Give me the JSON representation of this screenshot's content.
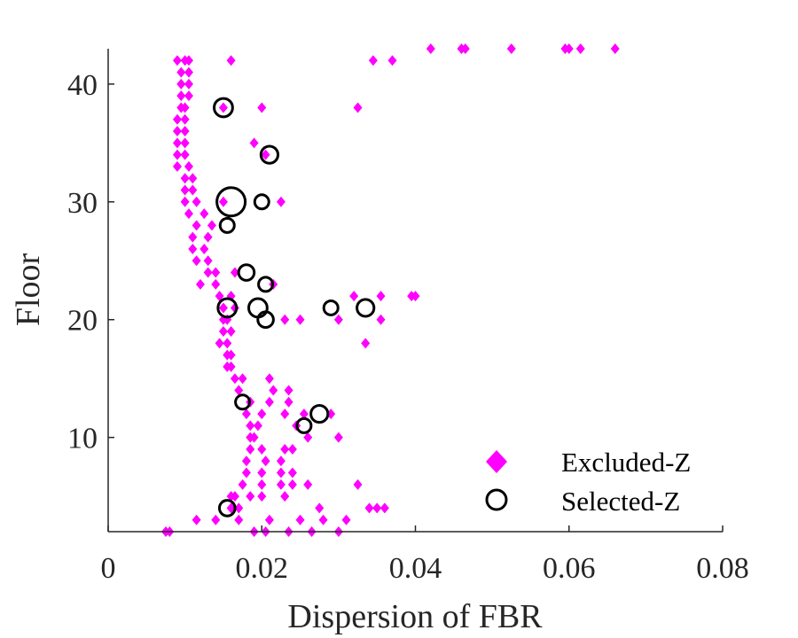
{
  "chart_data": {
    "type": "scatter",
    "title": "",
    "xlabel": "Dispersion of FBR",
    "ylabel": "Floor",
    "xlim": [
      0,
      0.08
    ],
    "ylim": [
      2,
      43
    ],
    "xticks": [
      0,
      0.02,
      0.04,
      0.06,
      0.08
    ],
    "xtick_labels": [
      "0",
      "0.02",
      "0.04",
      "0.06",
      "0.08"
    ],
    "yticks": [
      10,
      20,
      30,
      40
    ],
    "ytick_labels": [
      "10",
      "20",
      "30",
      "40"
    ],
    "grid": false,
    "legend_position": "bottom-right",
    "colors": {
      "excluded": "#ff00ff",
      "selected": "#000000",
      "axis": "#262626"
    },
    "series": [
      {
        "name": "Excluded-Z",
        "marker": "diamond",
        "points": [
          [
            0.0075,
            2
          ],
          [
            0.008,
            2
          ],
          [
            0.019,
            2
          ],
          [
            0.0205,
            2
          ],
          [
            0.0235,
            2
          ],
          [
            0.0265,
            2
          ],
          [
            0.03,
            2
          ],
          [
            0.0115,
            3
          ],
          [
            0.014,
            3
          ],
          [
            0.017,
            3
          ],
          [
            0.021,
            3
          ],
          [
            0.025,
            3
          ],
          [
            0.028,
            3
          ],
          [
            0.031,
            3
          ],
          [
            0.016,
            4
          ],
          [
            0.017,
            4
          ],
          [
            0.0275,
            4
          ],
          [
            0.034,
            4
          ],
          [
            0.035,
            4
          ],
          [
            0.036,
            4
          ],
          [
            0.016,
            5
          ],
          [
            0.0165,
            5
          ],
          [
            0.0185,
            5
          ],
          [
            0.02,
            5
          ],
          [
            0.023,
            5
          ],
          [
            0.0175,
            6
          ],
          [
            0.02,
            6
          ],
          [
            0.0225,
            6
          ],
          [
            0.024,
            6
          ],
          [
            0.026,
            6
          ],
          [
            0.0325,
            6
          ],
          [
            0.018,
            7
          ],
          [
            0.02,
            7
          ],
          [
            0.0225,
            7
          ],
          [
            0.024,
            7
          ],
          [
            0.018,
            8
          ],
          [
            0.0205,
            8
          ],
          [
            0.0225,
            8
          ],
          [
            0.0185,
            9
          ],
          [
            0.02,
            9
          ],
          [
            0.023,
            9
          ],
          [
            0.024,
            9
          ],
          [
            0.0185,
            10
          ],
          [
            0.019,
            10
          ],
          [
            0.026,
            10
          ],
          [
            0.03,
            10
          ],
          [
            0.0185,
            11
          ],
          [
            0.0195,
            11
          ],
          [
            0.0245,
            11
          ],
          [
            0.018,
            12
          ],
          [
            0.02,
            12
          ],
          [
            0.023,
            12
          ],
          [
            0.0255,
            12
          ],
          [
            0.029,
            12
          ],
          [
            0.0185,
            13
          ],
          [
            0.021,
            13
          ],
          [
            0.0235,
            13
          ],
          [
            0.017,
            14
          ],
          [
            0.0215,
            14
          ],
          [
            0.0235,
            14
          ],
          [
            0.0165,
            15
          ],
          [
            0.0175,
            15
          ],
          [
            0.021,
            15
          ],
          [
            0.0155,
            16
          ],
          [
            0.016,
            16
          ],
          [
            0.0155,
            17
          ],
          [
            0.016,
            17
          ],
          [
            0.0145,
            18
          ],
          [
            0.0155,
            18
          ],
          [
            0.0335,
            18
          ],
          [
            0.015,
            19
          ],
          [
            0.016,
            19
          ],
          [
            0.015,
            20
          ],
          [
            0.0155,
            20
          ],
          [
            0.023,
            20
          ],
          [
            0.025,
            20
          ],
          [
            0.03,
            20
          ],
          [
            0.0355,
            20
          ],
          [
            0.015,
            21
          ],
          [
            0.0165,
            21
          ],
          [
            0.0145,
            22
          ],
          [
            0.016,
            22
          ],
          [
            0.032,
            22
          ],
          [
            0.0355,
            22
          ],
          [
            0.0395,
            22
          ],
          [
            0.04,
            22
          ],
          [
            0.014,
            23
          ],
          [
            0.012,
            23
          ],
          [
            0.0215,
            23
          ],
          [
            0.013,
            24
          ],
          [
            0.014,
            24
          ],
          [
            0.0165,
            24
          ],
          [
            0.0115,
            25
          ],
          [
            0.013,
            25
          ],
          [
            0.011,
            26
          ],
          [
            0.0125,
            26
          ],
          [
            0.011,
            27
          ],
          [
            0.013,
            27
          ],
          [
            0.0115,
            28
          ],
          [
            0.0135,
            28
          ],
          [
            0.0105,
            29
          ],
          [
            0.0125,
            29
          ],
          [
            0.01,
            30
          ],
          [
            0.0115,
            30
          ],
          [
            0.015,
            30
          ],
          [
            0.0225,
            30
          ],
          [
            0.01,
            31
          ],
          [
            0.011,
            31
          ],
          [
            0.01,
            32
          ],
          [
            0.011,
            32
          ],
          [
            0.009,
            33
          ],
          [
            0.0105,
            33
          ],
          [
            0.009,
            34
          ],
          [
            0.01,
            34
          ],
          [
            0.0205,
            34
          ],
          [
            0.009,
            35
          ],
          [
            0.01,
            35
          ],
          [
            0.019,
            35
          ],
          [
            0.009,
            36
          ],
          [
            0.01,
            36
          ],
          [
            0.009,
            37
          ],
          [
            0.01,
            37
          ],
          [
            0.0095,
            38
          ],
          [
            0.01,
            38
          ],
          [
            0.015,
            38
          ],
          [
            0.02,
            38
          ],
          [
            0.0325,
            38
          ],
          [
            0.0095,
            39
          ],
          [
            0.0105,
            39
          ],
          [
            0.0095,
            40
          ],
          [
            0.0105,
            40
          ],
          [
            0.0095,
            41
          ],
          [
            0.0105,
            41
          ],
          [
            0.009,
            42
          ],
          [
            0.01,
            42
          ],
          [
            0.0105,
            42
          ],
          [
            0.016,
            42
          ],
          [
            0.0345,
            42
          ],
          [
            0.037,
            42
          ],
          [
            0.042,
            43
          ],
          [
            0.046,
            43
          ],
          [
            0.0465,
            43
          ],
          [
            0.0525,
            43
          ],
          [
            0.0595,
            43
          ],
          [
            0.06,
            43
          ],
          [
            0.0615,
            43
          ],
          [
            0.066,
            43
          ]
        ]
      },
      {
        "name": "Selected-Z",
        "marker": "circle",
        "points": [
          [
            0.0155,
            4,
            1.1
          ],
          [
            0.0255,
            11,
            1.0
          ],
          [
            0.0275,
            12,
            1.2
          ],
          [
            0.0175,
            13,
            1.0
          ],
          [
            0.0155,
            21,
            1.3
          ],
          [
            0.0195,
            21,
            1.3
          ],
          [
            0.0205,
            20,
            1.1
          ],
          [
            0.029,
            21,
            1.0
          ],
          [
            0.0335,
            21,
            1.2
          ],
          [
            0.0205,
            23,
            1.0
          ],
          [
            0.018,
            24,
            1.1
          ],
          [
            0.0155,
            28,
            1.0
          ],
          [
            0.016,
            30,
            2.0
          ],
          [
            0.02,
            30,
            1.0
          ],
          [
            0.021,
            34,
            1.2
          ],
          [
            0.015,
            38,
            1.3
          ]
        ]
      }
    ]
  },
  "legend": {
    "items": [
      {
        "label": "Excluded-Z",
        "marker": "diamond"
      },
      {
        "label": "Selected-Z",
        "marker": "circle"
      }
    ]
  }
}
